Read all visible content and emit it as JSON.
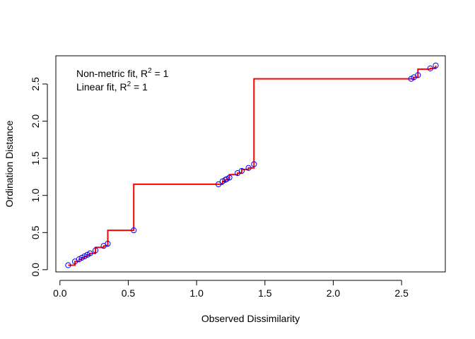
{
  "chart_data": {
    "type": "scatter",
    "xlabel": "Observed Dissimilarity",
    "ylabel": "Ordination Distance",
    "xlim": [
      -0.03,
      2.82
    ],
    "ylim": [
      -0.03,
      2.88
    ],
    "x_ticks": [
      0.0,
      0.5,
      1.0,
      1.5,
      2.0,
      2.5
    ],
    "x_tick_labels": [
      "0.0",
      "0.5",
      "1.0",
      "1.5",
      "2.0",
      "2.5"
    ],
    "y_ticks": [
      0.0,
      0.5,
      1.0,
      1.5,
      2.0,
      2.5
    ],
    "y_tick_labels": [
      "0.0",
      "0.5",
      "1.0",
      "1.5",
      "2.0",
      "2.5"
    ],
    "legend": {
      "placement": "top-left",
      "entries": [
        {
          "prefix": "Non-metric fit, R",
          "sup": "2",
          "suffix": " = 1"
        },
        {
          "prefix": "Linear fit, R",
          "sup": "2",
          "suffix": " = 1"
        }
      ]
    },
    "points": {
      "color": "#0000ff",
      "x": [
        0.06,
        0.11,
        0.14,
        0.16,
        0.18,
        0.2,
        0.22,
        0.26,
        0.32,
        0.35,
        0.54,
        1.16,
        1.19,
        1.21,
        1.22,
        1.24,
        1.3,
        1.33,
        1.38,
        1.42,
        2.57,
        2.59,
        2.62,
        2.71,
        2.75
      ],
      "y": [
        0.06,
        0.11,
        0.14,
        0.16,
        0.18,
        0.2,
        0.22,
        0.26,
        0.32,
        0.35,
        0.53,
        1.15,
        1.19,
        1.21,
        1.22,
        1.24,
        1.3,
        1.33,
        1.37,
        1.42,
        2.57,
        2.59,
        2.62,
        2.71,
        2.75
      ]
    },
    "step_line": {
      "color": "#ff0000",
      "x": [
        0.06,
        0.11,
        0.14,
        0.16,
        0.18,
        0.2,
        0.22,
        0.26,
        0.32,
        0.35,
        0.54,
        1.16,
        1.19,
        1.21,
        1.22,
        1.24,
        1.3,
        1.33,
        1.38,
        1.42,
        2.57,
        2.59,
        2.62,
        2.71,
        2.75
      ],
      "y": [
        0.06,
        0.11,
        0.14,
        0.16,
        0.18,
        0.2,
        0.22,
        0.3,
        0.32,
        0.53,
        1.15,
        1.15,
        1.19,
        1.21,
        1.22,
        1.28,
        1.3,
        1.35,
        1.37,
        2.57,
        2.57,
        2.59,
        2.7,
        2.71,
        2.75
      ]
    }
  }
}
